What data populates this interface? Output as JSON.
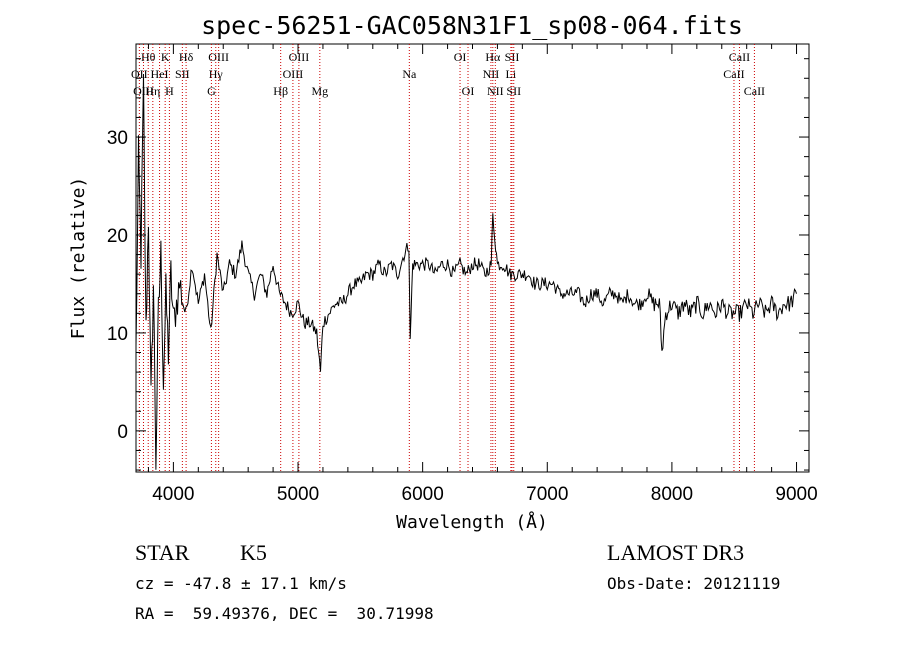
{
  "chart_data": {
    "type": "line",
    "title": "spec-56251-GAC058N31F1_sp08-064.fits",
    "xlabel": "Wavelength (Å)",
    "ylabel": "Flux (relative)",
    "xlim": [
      3700,
      9100
    ],
    "ylim": [
      -4.2,
      39.5
    ],
    "xticks": [
      4000,
      5000,
      6000,
      7000,
      8000,
      9000
    ],
    "yticks": [
      0,
      10,
      20,
      30
    ],
    "grid": false,
    "legend": "none",
    "line_color": "#000000",
    "marker_color": "#cc0000",
    "spectrum": {
      "wavelength": [
        3700,
        3720,
        3740,
        3760,
        3780,
        3800,
        3820,
        3840,
        3860,
        3880,
        3900,
        3920,
        3940,
        3960,
        3980,
        4000,
        4050,
        4100,
        4150,
        4200,
        4250,
        4300,
        4350,
        4400,
        4450,
        4500,
        4550,
        4600,
        4650,
        4700,
        4750,
        4800,
        4850,
        4900,
        4950,
        5000,
        5050,
        5100,
        5150,
        5180,
        5200,
        5250,
        5300,
        5350,
        5400,
        5450,
        5500,
        5550,
        5600,
        5650,
        5700,
        5750,
        5800,
        5850,
        5890,
        5900,
        5920,
        5950,
        6000,
        6050,
        6100,
        6150,
        6200,
        6250,
        6300,
        6350,
        6400,
        6450,
        6500,
        6550,
        6563,
        6600,
        6650,
        6700,
        6750,
        6800,
        6850,
        6900,
        6950,
        7000,
        7050,
        7100,
        7150,
        7200,
        7250,
        7300,
        7350,
        7400,
        7450,
        7500,
        7550,
        7600,
        7650,
        7700,
        7750,
        7800,
        7850,
        7900,
        7920,
        7950,
        8000,
        8050,
        8100,
        8150,
        8200,
        8250,
        8300,
        8350,
        8400,
        8450,
        8500,
        8550,
        8600,
        8650,
        8700,
        8750,
        8800,
        8850,
        8900,
        8950,
        9000
      ],
      "flux": [
        8,
        28,
        18,
        35,
        10,
        22,
        3,
        15,
        -3,
        12,
        18,
        5,
        14,
        8,
        16,
        11,
        15,
        12,
        17,
        13,
        16,
        10,
        18,
        14,
        17,
        16,
        19,
        16,
        14,
        16,
        14,
        17,
        14,
        13,
        12,
        13,
        11,
        11,
        10,
        6,
        11,
        12,
        13,
        13,
        14,
        15,
        15,
        16,
        16,
        17,
        16,
        17,
        16,
        18,
        19,
        9,
        17,
        17,
        17,
        17,
        16,
        17,
        17,
        16,
        17,
        16,
        17,
        17,
        16,
        17,
        22,
        17,
        17,
        16,
        16,
        16,
        16,
        15,
        15,
        15,
        15,
        14,
        14,
        14,
        14,
        13,
        14,
        14,
        13,
        14,
        14,
        13,
        14,
        13,
        13,
        14,
        13,
        13,
        8,
        12,
        13,
        12,
        13,
        12,
        13,
        12,
        13,
        12,
        13,
        12,
        12,
        12,
        13,
        12,
        13,
        12,
        13,
        12,
        13,
        13,
        14
      ]
    },
    "line_markers": [
      {
        "label": "Hθ",
        "x": 3798,
        "row": 1
      },
      {
        "label": "OII",
        "x": 3727,
        "row": 2
      },
      {
        "label": "OIII",
        "x": 3760,
        "row": 3
      },
      {
        "label": "Hη",
        "x": 3835,
        "row": 3
      },
      {
        "label": "K",
        "x": 3934,
        "row": 1
      },
      {
        "label": "HeI",
        "x": 3889,
        "row": 2
      },
      {
        "label": "H",
        "x": 3968,
        "row": 3
      },
      {
        "label": "Hδ",
        "x": 4102,
        "row": 1
      },
      {
        "label": "SII",
        "x": 4072,
        "row": 2
      },
      {
        "label": "OIII",
        "x": 4363,
        "row": 1
      },
      {
        "label": "Hγ",
        "x": 4340,
        "row": 2
      },
      {
        "label": "G",
        "x": 4305,
        "row": 3
      },
      {
        "label": "OIII",
        "x": 5007,
        "row": 1
      },
      {
        "label": "OIII",
        "x": 4959,
        "row": 2
      },
      {
        "label": "Hβ",
        "x": 4861,
        "row": 3
      },
      {
        "label": "Mg",
        "x": 5175,
        "row": 3
      },
      {
        "label": "Na",
        "x": 5893,
        "row": 2
      },
      {
        "label": "OI",
        "x": 6300,
        "row": 1
      },
      {
        "label": "OI",
        "x": 6364,
        "row": 3
      },
      {
        "label": "Hα",
        "x": 6563,
        "row": 1
      },
      {
        "label": "NII",
        "x": 6548,
        "row": 2
      },
      {
        "label": "NII",
        "x": 6583,
        "row": 3
      },
      {
        "label": "SII",
        "x": 6717,
        "row": 1
      },
      {
        "label": "Li",
        "x": 6708,
        "row": 2
      },
      {
        "label": "SII",
        "x": 6731,
        "row": 3
      },
      {
        "label": "CaII",
        "x": 8542,
        "row": 1
      },
      {
        "label": "CaII",
        "x": 8498,
        "row": 2
      },
      {
        "label": "CaII",
        "x": 8662,
        "row": 3
      }
    ]
  },
  "info": {
    "class_label": "STAR",
    "subclass": "K5",
    "survey": "LAMOST DR3",
    "cz": "cz = -47.8 ± 17.1 km/s",
    "obs_date": "Obs-Date: 20121119",
    "coords": "RA =  59.49376, DEC =  30.71998"
  }
}
